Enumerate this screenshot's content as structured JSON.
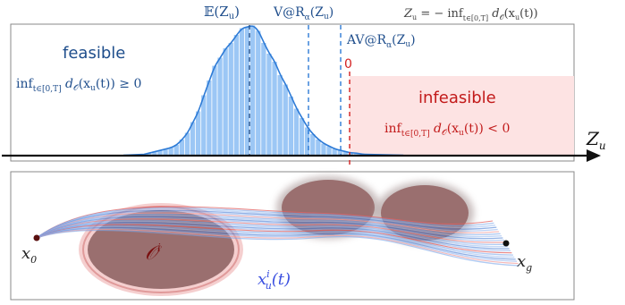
{
  "top_panel": {
    "label_expectation": "𝔼(Z",
    "label_expectation_sub": "u",
    "label_var": "V@R",
    "label_var_alpha": "α",
    "label_var_arg": "(Z",
    "label_avar": "AV@R",
    "label_avar_alpha": "α",
    "label_avar_arg": "(Z",
    "label_zero": "0",
    "definition": "Z",
    "definition_sub": "u",
    "definition_rhs": " = − inf",
    "definition_inf_sub": "t∈[0,T]",
    "definition_tail": " d",
    "definition_tail2": "(x",
    "definition_tail3": "(t))",
    "feasible_title": "feasible",
    "feasible_cond_inf": "inf",
    "feasible_cond_sub": "t∈[0,T]",
    "feasible_cond_rest": " d",
    "feasible_cond_O": "𝒪",
    "feasible_cond_tail": "(x",
    "feasible_cond_u": "u",
    "feasible_cond_end": "(t)) ≥ 0",
    "infeasible_title": "infeasible",
    "infeasible_cond_inf": "inf",
    "infeasible_cond_sub": "t∈[0,T]",
    "infeasible_cond_rest": " d",
    "infeasible_cond_O": "𝒪",
    "infeasible_cond_tail": "(x",
    "infeasible_cond_u": "u",
    "infeasible_cond_end": "(t)) < 0",
    "axis_label": "Z",
    "axis_label_sub": "u",
    "colors": {
      "feasible": "#1f4e8c",
      "infeasible": "#c21a1a",
      "hist": "#9cc7f5",
      "curve": "#2e7bd6",
      "shade": "#fde3e3"
    },
    "hist_heights": [
      0.01,
      0.02,
      0.03,
      0.04,
      0.05,
      0.06,
      0.08,
      0.12,
      0.17,
      0.25,
      0.33,
      0.45,
      0.56,
      0.67,
      0.73,
      0.8,
      0.84,
      0.9,
      0.95,
      0.96,
      0.97,
      0.93,
      0.84,
      0.76,
      0.7,
      0.6,
      0.53,
      0.44,
      0.35,
      0.28,
      0.21,
      0.16,
      0.12,
      0.09,
      0.07,
      0.05,
      0.04,
      0.03,
      0.02,
      0.02,
      0.01,
      0.01
    ]
  },
  "bottom_panel": {
    "start_label": "x",
    "start_sub": "0",
    "goal_label": "x",
    "goal_sub": "g",
    "obstacle_label": "𝒪",
    "obstacle_sup": "i",
    "traj_label": "x",
    "traj_sup": "i",
    "traj_sub": "u",
    "traj_arg": "(t)",
    "colors": {
      "obstacle": "#9a6f6f",
      "obstacle_edge": "#e09a9a",
      "traj_safe": "#5b8fe0",
      "traj_unsafe": "#e06060"
    }
  }
}
